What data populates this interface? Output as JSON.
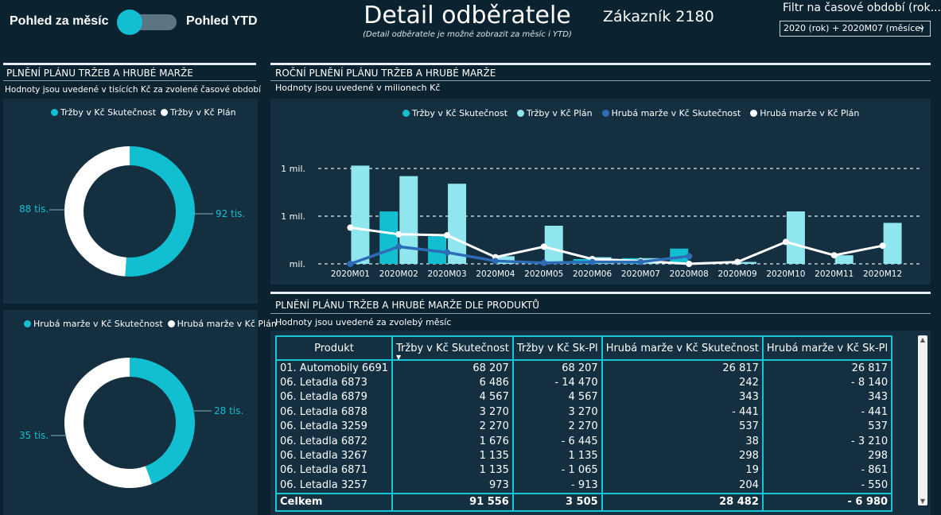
{
  "header": {
    "toggle_left_label": "Pohled za měsíc",
    "toggle_right_label": "Pohled YTD",
    "title": "Detail odběratele",
    "subtitle": "(Detail odběratele je možné zobrazit za měsíc i YTD)",
    "customer": "Zákazník 2180",
    "filter_label": "Filtr na časové období (rok...",
    "filter_value": "2020 (rok) + 2020M07 (měsíce)"
  },
  "left_section": {
    "title": "PLNĚNÍ PLÁNU TRŽEB A HRUBÉ MARŽE",
    "note": "Hodnoty jsou uvedené v tisících Kč za zvolené časové období"
  },
  "donut_revenue": {
    "legend": [
      "Tržby v Kč Skutečnost",
      "Tržby v Kč Plán"
    ],
    "label_actual": "92 tis.",
    "label_plan": "88 tis.",
    "actual_value": 92,
    "plan_value": 88,
    "colors": {
      "actual": "#12bfd0",
      "plan": "#ffffff"
    }
  },
  "donut_margin": {
    "legend": [
      "Hrubá marže v Kč Skutečnost",
      "Hrubá marže v Kč Plán"
    ],
    "label_actual": "28 tis.",
    "label_plan": "35 tis.",
    "actual_value": 28,
    "plan_value": 35,
    "colors": {
      "actual": "#12bfd0",
      "plan": "#ffffff"
    }
  },
  "annual_section": {
    "title": "ROČNÍ PLNĚNÍ PLÁNU TRŽEB A HRUBÉ MARŽE",
    "note": "Hodnoty jsou uvedené v milionech Kč"
  },
  "chart_data": {
    "type": "bar",
    "categories": [
      "2020M01",
      "2020M02",
      "2020M03",
      "2020M04",
      "2020M05",
      "2020M06",
      "2020M07",
      "2020M08",
      "2020M09",
      "2020M10",
      "2020M11",
      "2020M12"
    ],
    "ytick_labels": [
      "mil.",
      "1 mil.",
      "1 mil."
    ],
    "series": [
      {
        "name": "Tržby v Kč Skutečnost",
        "kind": "bar",
        "color": "#12bfd0",
        "values": [
          0.0,
          0.55,
          0.29,
          0.0,
          0.0,
          0.05,
          0.06,
          0.16,
          0.0,
          0.0,
          0.0,
          0.0
        ]
      },
      {
        "name": "Tržby v Kč Plán",
        "kind": "bar",
        "color": "#8fe6ee",
        "values": [
          1.03,
          0.92,
          0.84,
          0.08,
          0.4,
          0.07,
          0.06,
          0.0,
          0.02,
          0.55,
          0.09,
          0.43
        ]
      },
      {
        "name": "Hrubá marže v Kč Skutečnost",
        "kind": "line",
        "color": "#2f6cb8",
        "values": [
          0.0,
          0.18,
          0.12,
          0.03,
          0.01,
          0.02,
          0.02,
          0.08,
          null,
          null,
          null,
          null
        ]
      },
      {
        "name": "Hrubá marže v Kč Plán",
        "kind": "line",
        "color": "#ffffff",
        "values": [
          0.38,
          0.31,
          0.3,
          0.07,
          0.18,
          0.05,
          0.03,
          0.0,
          0.02,
          0.23,
          0.09,
          0.19
        ]
      }
    ]
  },
  "products_section": {
    "title": "PLNĚNÍ PLÁNU TRŽEB A HRUBÉ MARŽE DLE PRODUKTŮ",
    "note": "Hodnoty jsou uvedené za zvolebý měsíc"
  },
  "table": {
    "headers": [
      "Produkt",
      "Tržby v Kč Skutečnost",
      "Tržby v Kč Sk-Pl",
      "Hrubá marže v Kč Skutečnost",
      "Hrubá marže v Kč Sk-Pl"
    ],
    "rows": [
      [
        "01. Automobily 6691",
        "68 207",
        "68 207",
        "26 817",
        "26 817"
      ],
      [
        "06. Letadla 6873",
        "6 486",
        "- 14 470",
        "242",
        "- 8 140"
      ],
      [
        "06. Letadla 6879",
        "4 567",
        "4 567",
        "343",
        "343"
      ],
      [
        "06. Letadla 6878",
        "3 270",
        "3 270",
        "- 441",
        "- 441"
      ],
      [
        "06. Letadla 3259",
        "2 270",
        "2 270",
        "537",
        "537"
      ],
      [
        "06. Letadla 6872",
        "1 676",
        "- 6 445",
        "38",
        "- 3 210"
      ],
      [
        "06. Letadla 3267",
        "1 135",
        "1 135",
        "298",
        "298"
      ],
      [
        "06. Letadla 6871",
        "1 135",
        "- 1 065",
        "19",
        "- 861"
      ],
      [
        "06. Letadla 3257",
        "973",
        "- 913",
        "204",
        "- 550"
      ]
    ],
    "total": [
      "Celkem",
      "91 556",
      "3 505",
      "28 482",
      "- 6 980"
    ]
  }
}
